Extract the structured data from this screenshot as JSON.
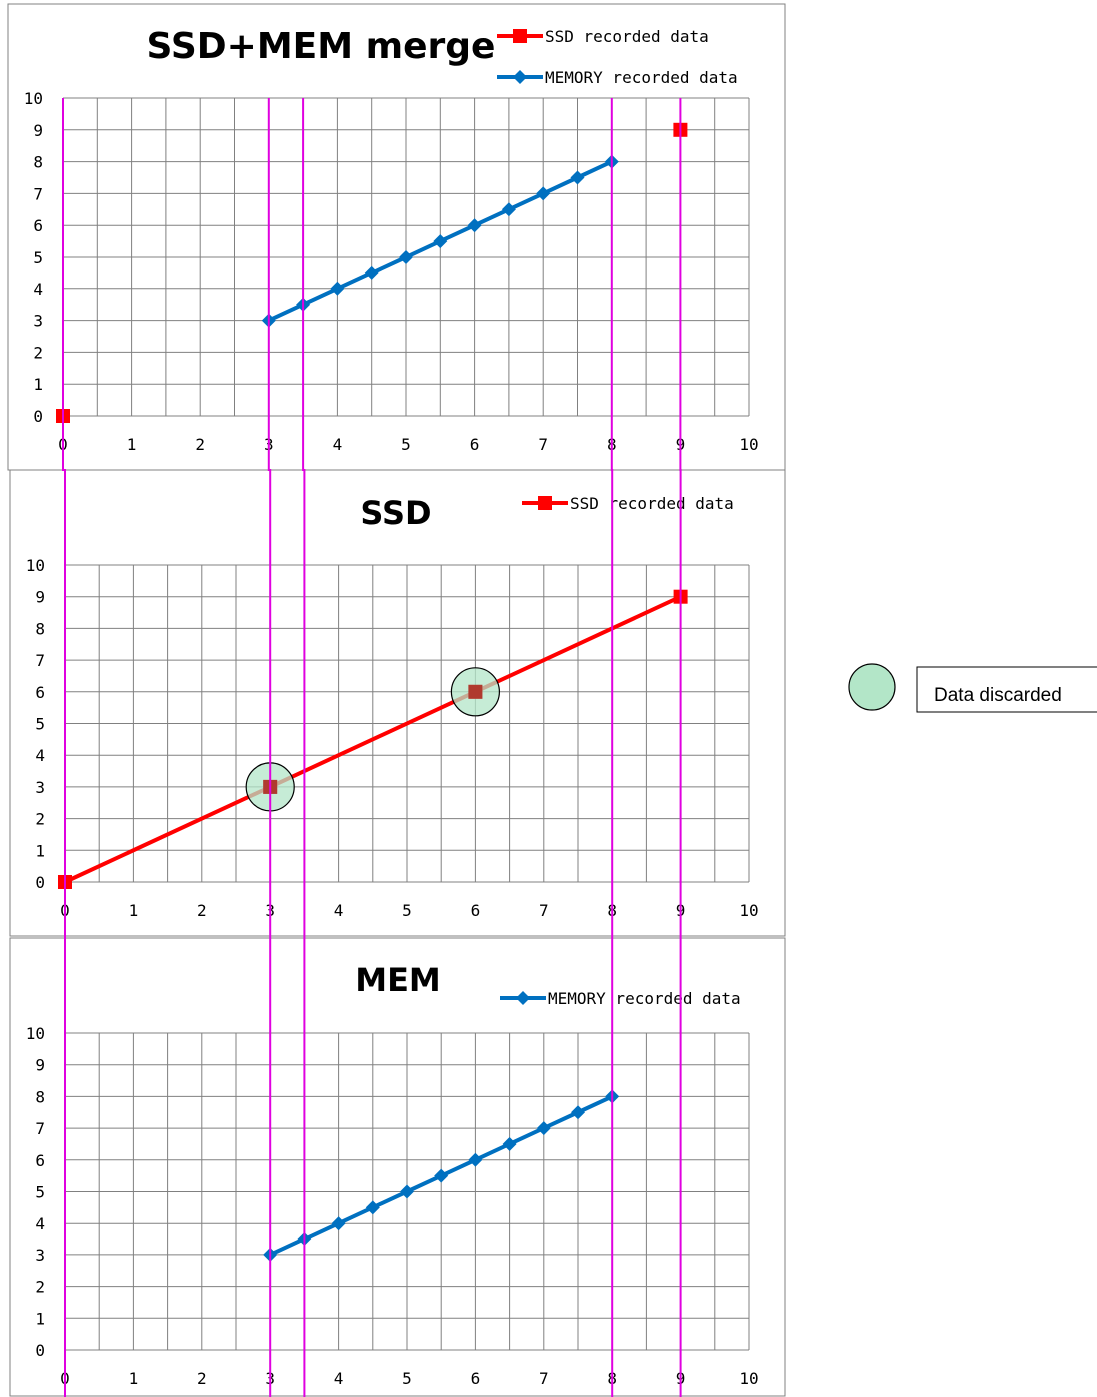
{
  "colors": {
    "ssd": "#ff0000",
    "memory": "#0070c0",
    "guide": "#e000e0",
    "discard_fill": "#b3e6c8",
    "grid": "#808080"
  },
  "chart_data": [
    {
      "id": "merge",
      "type": "scatter",
      "title": "SSD+MEM merge",
      "xlim": [
        0,
        10
      ],
      "ylim": [
        0,
        10
      ],
      "x_ticks": [
        0,
        1,
        2,
        3,
        4,
        5,
        6,
        7,
        8,
        9,
        10
      ],
      "y_ticks": [
        0,
        1,
        2,
        3,
        4,
        5,
        6,
        7,
        8,
        9,
        10
      ],
      "grid": true,
      "legend_position": "top-right",
      "series": [
        {
          "name": "SSD recorded data",
          "color": "ssd",
          "marker": "square",
          "line": false,
          "points": [
            [
              0,
              0
            ],
            [
              9,
              9
            ]
          ]
        },
        {
          "name": "MEMORY recorded data",
          "color": "memory",
          "marker": "diamond",
          "line": true,
          "points": [
            [
              3,
              3
            ],
            [
              3.5,
              3.5
            ],
            [
              4,
              4
            ],
            [
              4.5,
              4.5
            ],
            [
              5,
              5
            ],
            [
              5.5,
              5.5
            ],
            [
              6,
              6
            ],
            [
              6.5,
              6.5
            ],
            [
              7,
              7
            ],
            [
              7.5,
              7.5
            ],
            [
              8,
              8
            ]
          ]
        }
      ]
    },
    {
      "id": "ssd",
      "type": "line",
      "title": "SSD",
      "xlim": [
        0,
        10
      ],
      "ylim": [
        0,
        10
      ],
      "x_ticks": [
        0,
        1,
        2,
        3,
        4,
        5,
        6,
        7,
        8,
        9,
        10
      ],
      "y_ticks": [
        0,
        1,
        2,
        3,
        4,
        5,
        6,
        7,
        8,
        9,
        10
      ],
      "grid": true,
      "legend_position": "top-right",
      "series": [
        {
          "name": "SSD recorded data",
          "color": "ssd",
          "marker": "square",
          "line": true,
          "points": [
            [
              0,
              0
            ],
            [
              3,
              3
            ],
            [
              6,
              6
            ],
            [
              9,
              9
            ]
          ]
        }
      ],
      "discarded_points": [
        [
          3,
          3
        ],
        [
          6,
          6
        ]
      ]
    },
    {
      "id": "mem",
      "type": "line",
      "title": "MEM",
      "xlim": [
        0,
        10
      ],
      "ylim": [
        0,
        10
      ],
      "x_ticks": [
        0,
        1,
        2,
        3,
        4,
        5,
        6,
        7,
        8,
        9,
        10
      ],
      "y_ticks": [
        0,
        1,
        2,
        3,
        4,
        5,
        6,
        7,
        8,
        9,
        10
      ],
      "grid": true,
      "legend_position": "top-right",
      "series": [
        {
          "name": "MEMORY recorded data",
          "color": "memory",
          "marker": "diamond",
          "line": true,
          "points": [
            [
              3,
              3
            ],
            [
              3.5,
              3.5
            ],
            [
              4,
              4
            ],
            [
              4.5,
              4.5
            ],
            [
              5,
              5
            ],
            [
              5.5,
              5.5
            ],
            [
              6,
              6
            ],
            [
              6.5,
              6.5
            ],
            [
              7,
              7
            ],
            [
              7.5,
              7.5
            ],
            [
              8,
              8
            ]
          ]
        }
      ]
    }
  ],
  "guide_lines_x": [
    0,
    3,
    3.5,
    8,
    9
  ],
  "side_legend": {
    "label": "Data discarded",
    "icon": "green-circle-icon"
  }
}
